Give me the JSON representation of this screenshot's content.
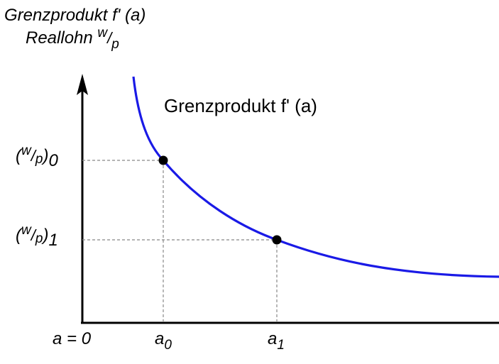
{
  "y_axis": {
    "title_line1": "Grenzprodukt f' (a)",
    "title_line2_prefix": "Reallohn ",
    "title_line2_w": "w",
    "title_line2_slash": "/",
    "title_line2_p": "p"
  },
  "curve": {
    "label": "Grenzprodukt f' (a)",
    "color": "#1a1ae6"
  },
  "y_ticks": [
    {
      "w": "w",
      "slash": "/",
      "p": "p",
      "open": "(",
      "close": ")",
      "sub": "0"
    },
    {
      "w": "w",
      "slash": "/",
      "p": "p",
      "open": "(",
      "close": ")",
      "sub": "1"
    }
  ],
  "x_ticks": {
    "origin": "a = 0",
    "a0_base": "a",
    "a0_sub": "0",
    "a1_base": "a",
    "a1_sub": "1"
  },
  "points": [
    {
      "name": "a0"
    },
    {
      "name": "a1"
    }
  ]
}
